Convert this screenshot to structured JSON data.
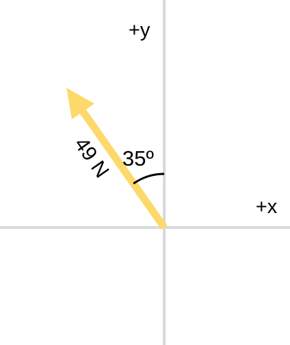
{
  "axes": {
    "y_label": "+y",
    "x_label": "+x"
  },
  "vector": {
    "magnitude_label": "49 N",
    "magnitude": 49,
    "unit": "N",
    "angle_from_positive_y_deg": 35,
    "direction": "up-left",
    "color": "#fdd96b"
  },
  "angle": {
    "label": "35º",
    "degrees": 35,
    "measured_from": "+y"
  },
  "colors": {
    "axis": "#d9d9d9",
    "vector": "#fdd96b",
    "text": "#000000",
    "background": "#ffffff"
  }
}
